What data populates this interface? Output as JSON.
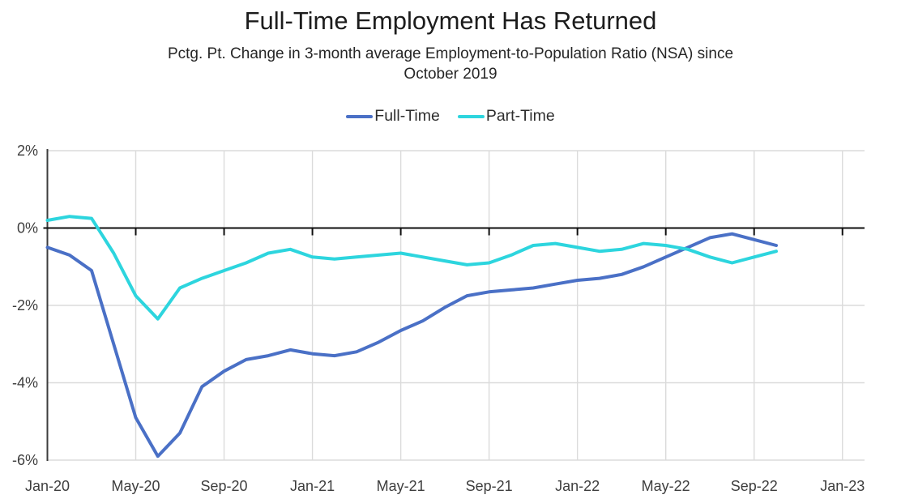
{
  "chart_data": {
    "type": "line",
    "title": "Full-Time Employment Has Returned",
    "subtitle_lines": [
      "Pctg. Pt. Change in 3-month average Employment-to-Population Ratio (NSA) since",
      "October 2019"
    ],
    "categories": [
      "Jan-20",
      "Feb-20",
      "Mar-20",
      "Apr-20",
      "May-20",
      "Jun-20",
      "Jul-20",
      "Aug-20",
      "Sep-20",
      "Oct-20",
      "Nov-20",
      "Dec-20",
      "Jan-21",
      "Feb-21",
      "Mar-21",
      "Apr-21",
      "May-21",
      "Jun-21",
      "Jul-21",
      "Aug-21",
      "Sep-21",
      "Oct-21",
      "Nov-21",
      "Dec-21",
      "Jan-22",
      "Feb-22",
      "Mar-22",
      "Apr-22",
      "May-22",
      "Jun-22",
      "Jul-22",
      "Aug-22",
      "Sep-22",
      "Oct-22"
    ],
    "series": [
      {
        "name": "Full-Time",
        "color": "#4A70C6",
        "values": [
          -0.5,
          -0.7,
          -1.1,
          -3.0,
          -4.9,
          -5.9,
          -5.3,
          -4.1,
          -3.7,
          -3.4,
          -3.3,
          -3.15,
          -3.25,
          -3.3,
          -3.2,
          -2.95,
          -2.65,
          -2.4,
          -2.05,
          -1.75,
          -1.65,
          -1.6,
          -1.55,
          -1.45,
          -1.35,
          -1.3,
          -1.2,
          -1.0,
          -0.75,
          -0.5,
          -0.25,
          -0.15,
          -0.3,
          -0.45
        ]
      },
      {
        "name": "Part-Time",
        "color": "#2DD5DE",
        "values": [
          0.2,
          0.3,
          0.25,
          -0.65,
          -1.75,
          -2.35,
          -1.55,
          -1.3,
          -1.1,
          -0.9,
          -0.65,
          -0.55,
          -0.75,
          -0.8,
          -0.75,
          -0.7,
          -0.65,
          -0.75,
          -0.85,
          -0.95,
          -0.9,
          -0.7,
          -0.45,
          -0.4,
          -0.5,
          -0.6,
          -0.55,
          -0.4,
          -0.45,
          -0.55,
          -0.75,
          -0.9,
          -0.75,
          -0.6
        ]
      }
    ],
    "x_tick_labels": [
      "Jan-20",
      "May-20",
      "Sep-20",
      "Jan-21",
      "May-21",
      "Sep-21",
      "Jan-22",
      "May-22",
      "Sep-22",
      "Jan-23"
    ],
    "x_tick_interval_months": 4,
    "x_domain_months": 37,
    "y_ticks": [
      {
        "v": 2,
        "label": "2%"
      },
      {
        "v": 0,
        "label": "0%"
      },
      {
        "v": -2,
        "label": "-2%"
      },
      {
        "v": -4,
        "label": "-4%"
      },
      {
        "v": -6,
        "label": "-6%"
      }
    ],
    "ylim": [
      -6,
      2
    ],
    "grid": true,
    "legend_position": "top",
    "colors": {
      "grid": "#DBDBDB",
      "zero_line": "#0F0F0F",
      "y_axis": "#3C3C3C",
      "tick_text": "#3E3E3E"
    }
  }
}
